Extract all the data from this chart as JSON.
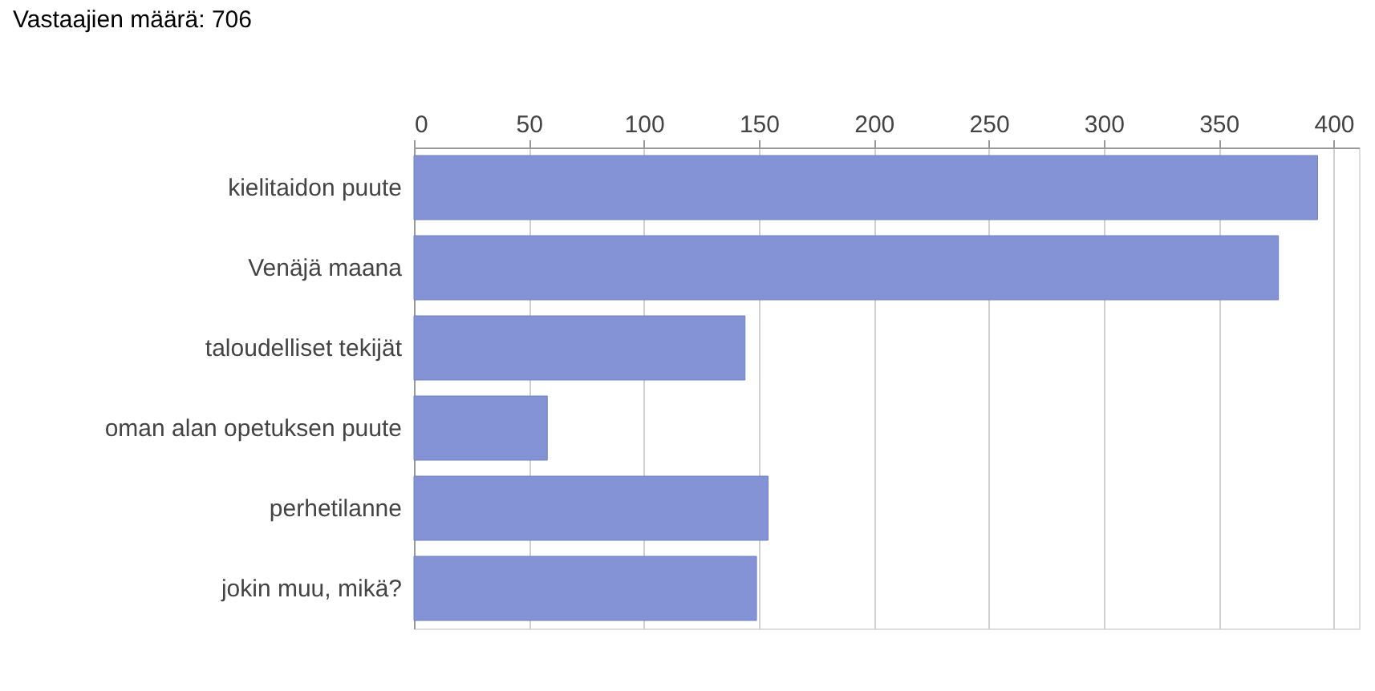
{
  "chart_data": {
    "type": "bar",
    "orientation": "horizontal",
    "title": "Vastaajien määrä: 706",
    "categories": [
      "kielitaidon puute",
      "Venäjä maana",
      "taloudelliset tekijät",
      "oman alan opetuksen puute",
      "perhetilanne",
      "jokin muu, mikä?"
    ],
    "values": [
      393,
      376,
      144,
      58,
      154,
      149
    ],
    "color": "#8493d5",
    "xlim": [
      0,
      411
    ],
    "xticks": [
      0,
      50,
      100,
      150,
      200,
      250,
      300,
      350,
      400
    ],
    "grid": "x"
  }
}
